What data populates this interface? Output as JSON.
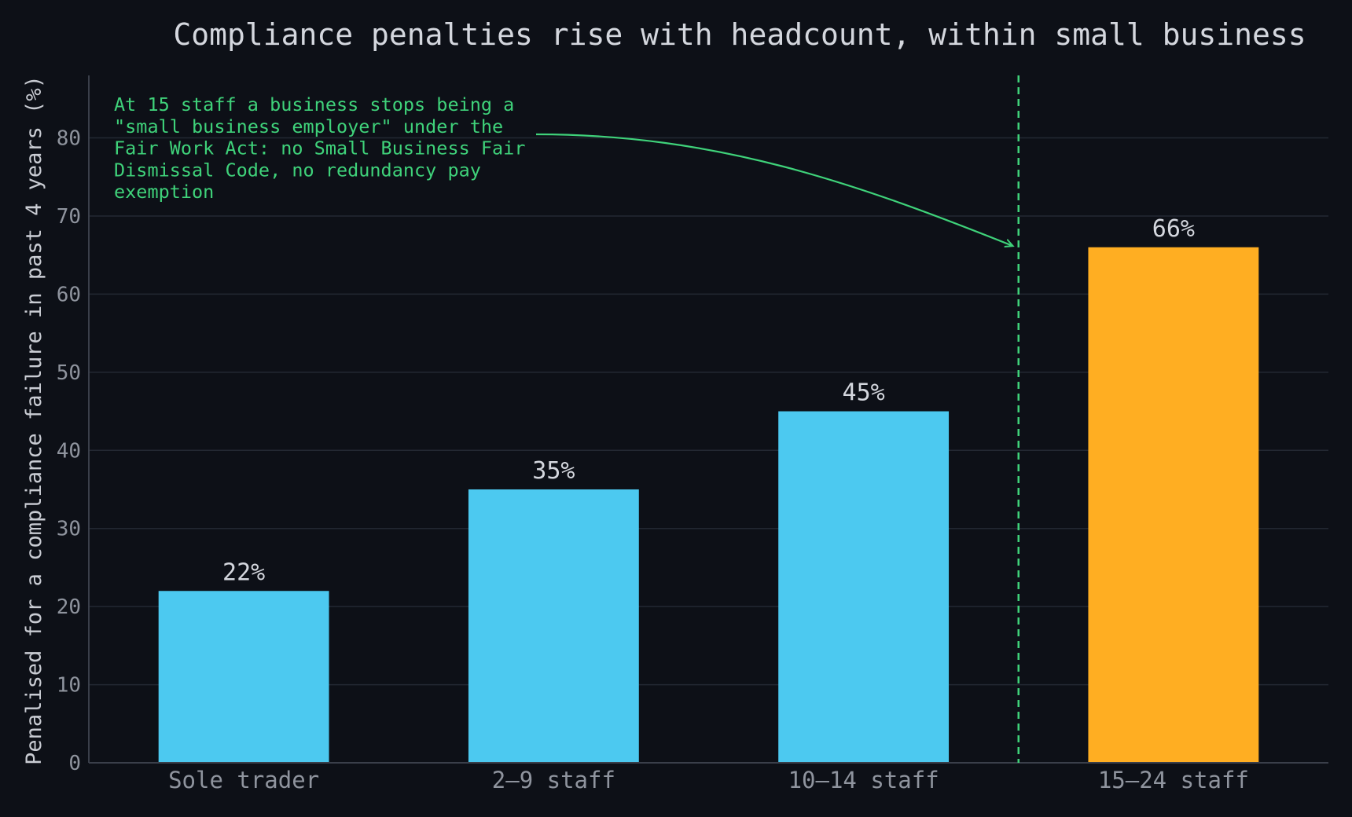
{
  "chart_data": {
    "type": "bar",
    "title": "Compliance penalties rise with headcount, within small business",
    "xlabel": "",
    "ylabel": "Penalised for a compliance failure in past 4 years (%)",
    "categories": [
      "Sole trader",
      "2–9 staff",
      "10–14 staff",
      "15–24 staff"
    ],
    "values": [
      22,
      35,
      45,
      66
    ],
    "value_labels": [
      "22%",
      "35%",
      "45%",
      "66%"
    ],
    "ylim": [
      0,
      88
    ],
    "yticks": [
      0,
      10,
      20,
      30,
      40,
      50,
      60,
      70,
      80
    ],
    "grid": true,
    "threshold_between": [
      2,
      3
    ],
    "annotation": {
      "lines": [
        "At 15 staff a business stops being a",
        "\"small business employer\" under the",
        "Fair Work Act: no Small Business Fair",
        "Dismissal Code, no redundancy pay",
        "exemption"
      ],
      "arrow_target_value": 66
    },
    "colors": {
      "bar": "#4cc9f0",
      "highlight_bar": "#ffae22",
      "highlight_index": 3,
      "threshold": "#3fd27a",
      "annotation": "#3fd27a",
      "grid": "#232833",
      "axis": "#3a3f4a"
    }
  }
}
